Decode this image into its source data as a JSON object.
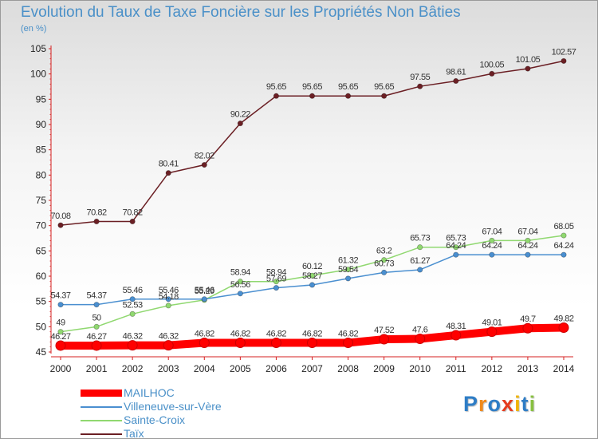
{
  "chart_data": {
    "type": "line",
    "title": "Evolution du Taux de Taxe Foncière sur les Propriétés Non Bâties",
    "subtitle": "(en %)",
    "x": [
      "2000",
      "2001",
      "2002",
      "2003",
      "2004",
      "2005",
      "2006",
      "2007",
      "2008",
      "2009",
      "2010",
      "2011",
      "2012",
      "2013",
      "2014"
    ],
    "ylim": [
      45,
      105
    ],
    "yticks": [
      45,
      50,
      55,
      60,
      65,
      70,
      75,
      80,
      85,
      90,
      95,
      100,
      105
    ],
    "grid": false,
    "legend_position": "bottom-left",
    "series": [
      {
        "name": "MAILHOC",
        "color": "#ff0000",
        "values": [
          46.27,
          46.27,
          46.32,
          46.32,
          46.82,
          46.82,
          46.82,
          46.82,
          46.82,
          47.52,
          47.6,
          48.31,
          49.01,
          49.7,
          49.82
        ],
        "labels": [
          "46.27",
          "46.27",
          "46.32",
          "46.32",
          "46.82",
          "46.82",
          "46.82",
          "46.82",
          "46.82",
          "47.52",
          "47.6",
          "48.31",
          "49.01",
          "49.7",
          "49.82"
        ]
      },
      {
        "name": "Villeneuve-sur-Vère",
        "color": "#4a8fd0",
        "values": [
          54.37,
          54.37,
          55.46,
          55.46,
          55.46,
          56.56,
          57.69,
          58.27,
          59.54,
          60.73,
          61.27,
          64.24,
          64.24,
          64.24,
          64.24
        ],
        "labels": [
          "54.37",
          "54.37",
          "55.46",
          "55.46",
          "55.46",
          "56.56",
          "57.69",
          "58.27",
          "59.54",
          "60.73",
          "61.27",
          "64.24",
          "64.24",
          "64.24",
          "64.24"
        ]
      },
      {
        "name": "Sainte-Croix",
        "color": "#90d870",
        "values": [
          49,
          50,
          52.53,
          54.18,
          55.29,
          58.94,
          58.94,
          60.12,
          61.32,
          63.2,
          65.73,
          65.73,
          67.04,
          67.04,
          68.05
        ],
        "labels": [
          "49",
          "50",
          "52.53",
          "54.18",
          "55.29",
          "58.94",
          "58.94",
          "60.12",
          "61.32",
          "63.2",
          "65.73",
          "65.73",
          "67.04",
          "67.04",
          "68.05"
        ]
      },
      {
        "name": "Taïx",
        "color": "#6b1f24",
        "values": [
          70.08,
          70.82,
          70.82,
          80.41,
          82.02,
          90.22,
          95.65,
          95.65,
          95.65,
          95.65,
          97.55,
          98.61,
          100.05,
          101.05,
          102.57
        ],
        "labels": [
          "70.08",
          "70.82",
          "70.82",
          "80.41",
          "82.02",
          "90.22",
          "95.65",
          "95.65",
          "95.65",
          "95.65",
          "97.55",
          "98.61",
          "100.05",
          "101.05",
          "102.57"
        ]
      }
    ]
  },
  "brand": {
    "letters": [
      "P",
      "r",
      "o",
      "x",
      "i",
      "t",
      "i"
    ],
    "colors": [
      "#2e7dc6",
      "#f08a1c",
      "#2e7dc6",
      "#e63c1e",
      "#f0b400",
      "#2e7dc6",
      "#88c040"
    ]
  }
}
